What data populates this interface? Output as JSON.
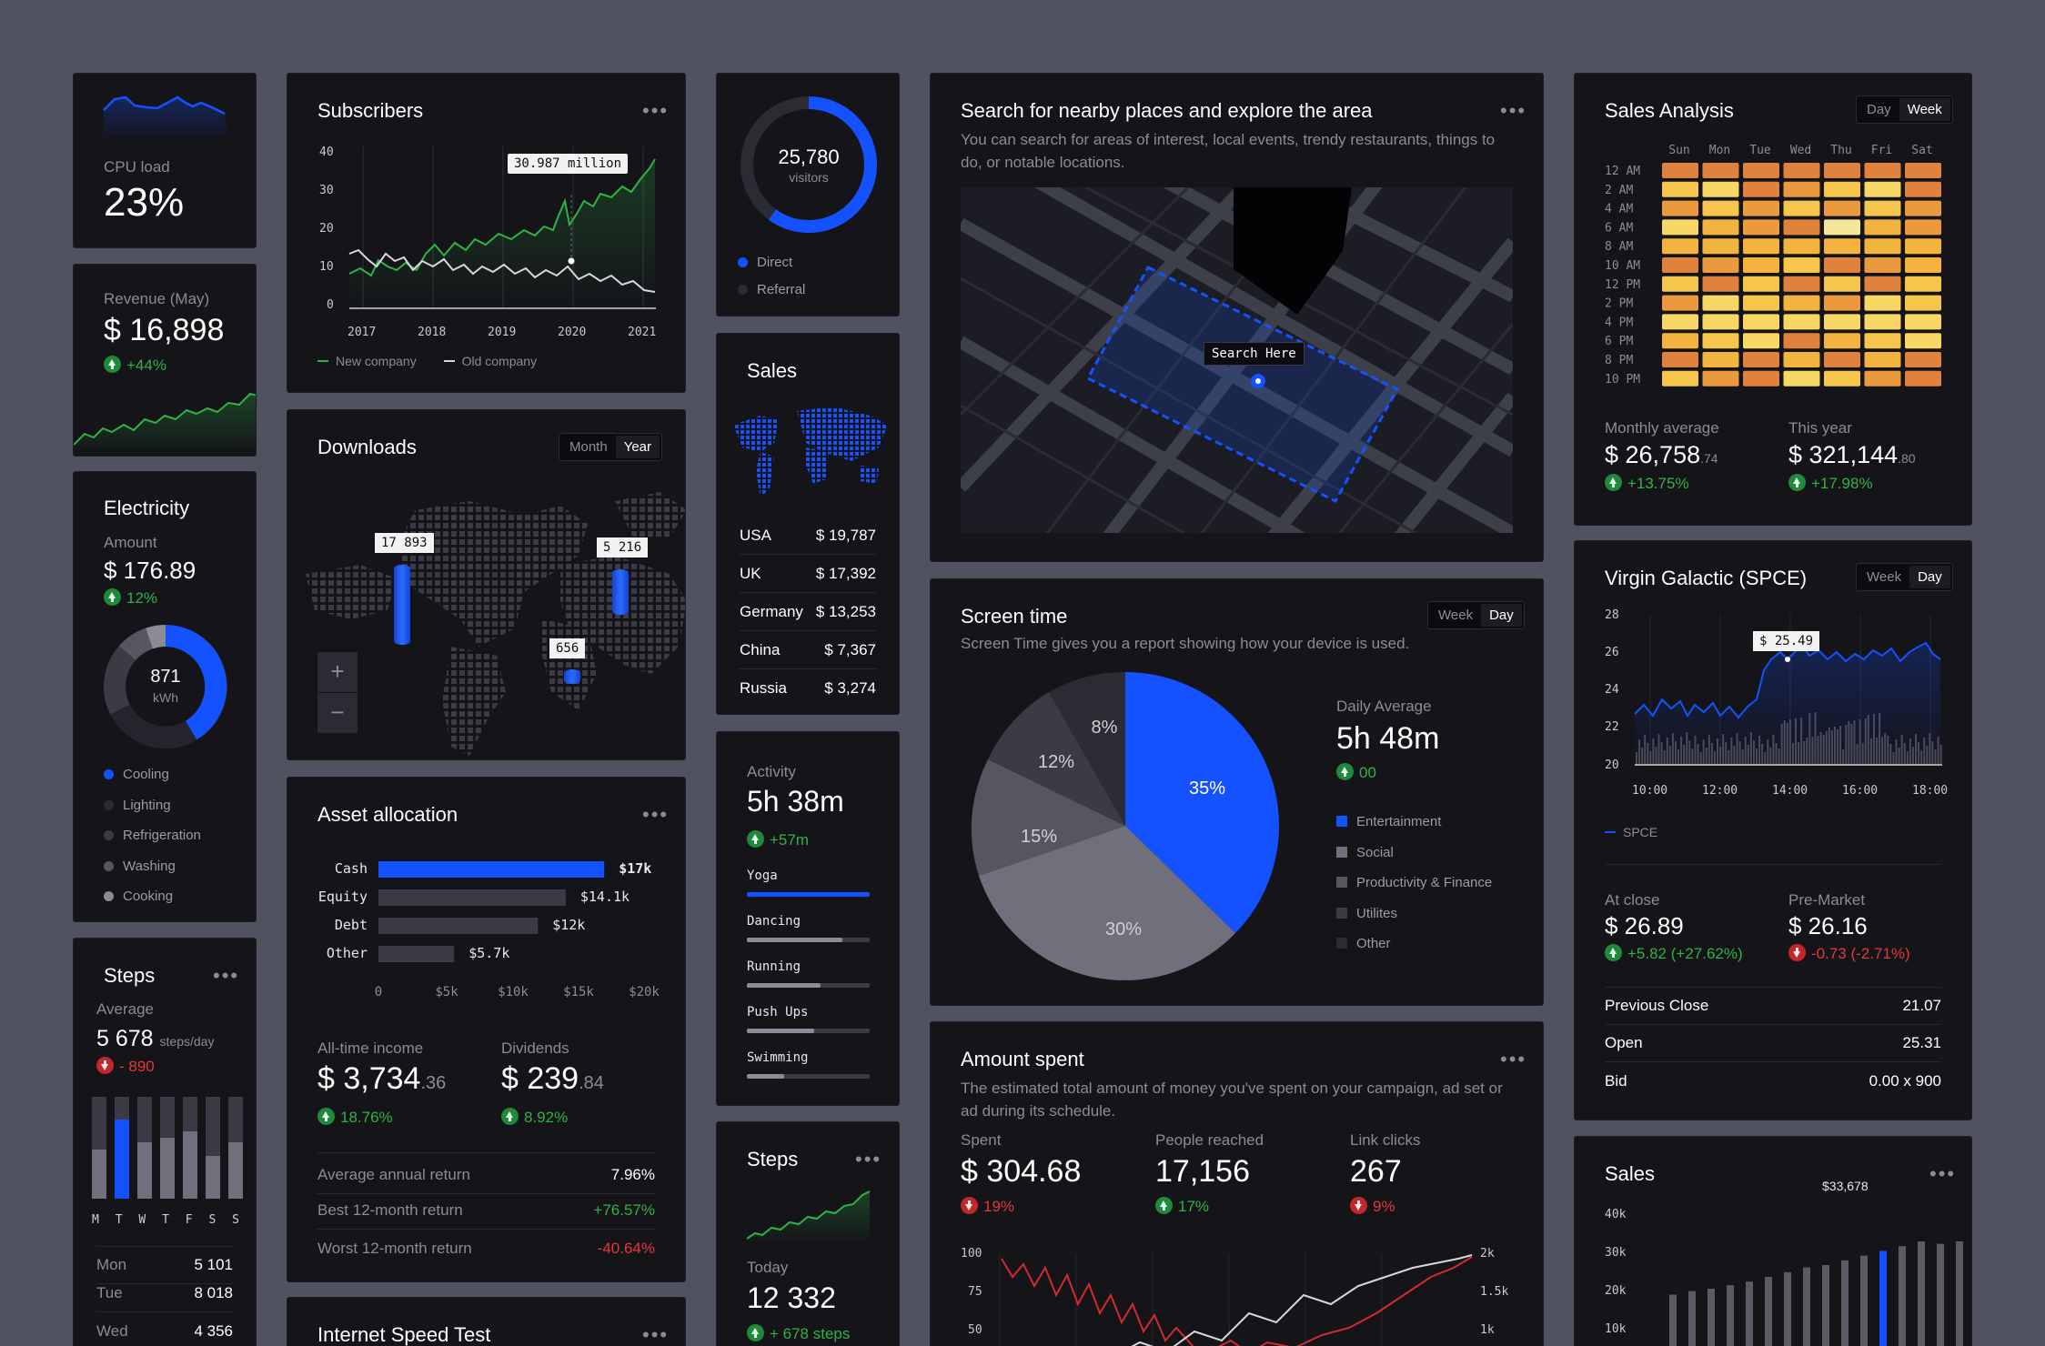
{
  "cpu": {
    "label": "CPU load",
    "value": "23%"
  },
  "revenue": {
    "label": "Revenue (May)",
    "value": "$ 16,898",
    "change": "+44%"
  },
  "electricity": {
    "title": "Electricity",
    "amount_label": "Amount",
    "amount": "$ 176.89",
    "change": "12%",
    "center_value": "871",
    "center_unit": "kWh",
    "legend": [
      "Cooling",
      "Lighting",
      "Refrigeration",
      "Washing",
      "Cooking"
    ]
  },
  "steps_left": {
    "title": "Steps",
    "avg_label": "Average",
    "avg_value": "5 678",
    "avg_unit": "steps/day",
    "change": "- 890",
    "days": [
      "M",
      "T",
      "W",
      "T",
      "F",
      "S",
      "S"
    ],
    "levels": [
      0.48,
      0.78,
      0.55,
      0.6,
      0.66,
      0.42,
      0.55
    ],
    "rows": [
      {
        "day": "Mon",
        "value": "5 101"
      },
      {
        "day": "Tue",
        "value": "8 018"
      },
      {
        "day": "Wed",
        "value": "4 356"
      }
    ]
  },
  "subscribers": {
    "title": "Subscribers",
    "tooltip": "30.987 million",
    "y_ticks": [
      "40",
      "30",
      "20",
      "10",
      "0"
    ],
    "x_ticks": [
      "2017",
      "2018",
      "2019",
      "2020",
      "2021"
    ],
    "legend": [
      "New company",
      "Old company"
    ]
  },
  "downloads": {
    "title": "Downloads",
    "toggle": [
      "Month",
      "Year"
    ],
    "active": "Year",
    "pins": [
      "17 893",
      "5 216",
      "656"
    ],
    "zoom_in": "+",
    "zoom_out": "−"
  },
  "asset": {
    "title": "Asset allocation",
    "bars": [
      {
        "label": "Cash",
        "value": "$17k",
        "amount": 17
      },
      {
        "label": "Equity",
        "value": "$14.1k",
        "amount": 14.1
      },
      {
        "label": "Debt",
        "value": "$12k",
        "amount": 12
      },
      {
        "label": "Other",
        "value": "$5.7k",
        "amount": 5.7
      }
    ],
    "x_ticks": [
      "0",
      "$5k",
      "$10k",
      "$15k",
      "$20k"
    ],
    "income_label": "All-time income",
    "income": "$ 3,734",
    "income_cents": ".36",
    "income_change": "18.76%",
    "div_label": "Dividends",
    "div": "$ 239",
    "div_cents": ".84",
    "div_change": "8.92%",
    "rows": [
      {
        "label": "Average annual return",
        "value": "7.96%"
      },
      {
        "label": "Best 12-month return",
        "value": "+76.57%"
      },
      {
        "label": "Worst 12-month return",
        "value": "-40.64%"
      }
    ]
  },
  "speed": {
    "title": "Internet Speed Test"
  },
  "visitors": {
    "value": "25,780",
    "unit": "visitors",
    "legend": [
      "Direct",
      "Referral"
    ],
    "direct_share": 0.6
  },
  "sales_mid": {
    "title": "Sales",
    "rows": [
      {
        "country": "USA",
        "value": "$ 19,787"
      },
      {
        "country": "UK",
        "value": "$ 17,392"
      },
      {
        "country": "Germany",
        "value": "$ 13,253"
      },
      {
        "country": "China",
        "value": "$ 7,367"
      },
      {
        "country": "Russia",
        "value": "$ 3,274"
      }
    ]
  },
  "activity": {
    "label": "Activity",
    "value": "5h 38m",
    "change": "+57m",
    "items": [
      {
        "name": "Yoga",
        "level": 1.0
      },
      {
        "name": "Dancing",
        "level": 0.78
      },
      {
        "name": "Running",
        "level": 0.6
      },
      {
        "name": "Push Ups",
        "level": 0.55
      },
      {
        "name": "Swimming",
        "level": 0.3
      }
    ]
  },
  "steps_mid": {
    "title": "Steps",
    "today_label": "Today",
    "value": "12 332",
    "change": "+ 678 steps"
  },
  "map": {
    "title": "Search for nearby places and explore the area",
    "desc": "You can search for areas of interest, local events, trendy restaurants, things to do, or notable locations.",
    "pin_label": "Search Here"
  },
  "screen_time": {
    "title": "Screen time",
    "desc": "Screen Time gives you a report showing how your device is used.",
    "toggle": [
      "Week",
      "Day"
    ],
    "active": "Day",
    "avg_label": "Daily Average",
    "avg_value": "5h 48m",
    "change": "00",
    "legend": [
      "Entertainment",
      "Social",
      "Productivity & Finance",
      "Utilites",
      "Other"
    ]
  },
  "amount_spent": {
    "title": "Amount spent",
    "desc": "The estimated total amount of money you've spent on your campaign, ad set or ad during its schedule.",
    "stats": [
      {
        "label": "Spent",
        "value": "$ 304.68",
        "change": "19%",
        "dir": "down"
      },
      {
        "label": "People reached",
        "value": "17,156",
        "change": "17%",
        "dir": "up"
      },
      {
        "label": "Link clicks",
        "value": "267",
        "change": "9%",
        "dir": "down"
      }
    ],
    "y_left": [
      "100",
      "75",
      "50"
    ],
    "y_right": [
      "2k",
      "1.5k",
      "1k"
    ]
  },
  "sales_analysis": {
    "title": "Sales Analysis",
    "toggle": [
      "Day",
      "Week"
    ],
    "active": "Week",
    "days": [
      "Sun",
      "Mon",
      "Tue",
      "Wed",
      "Thu",
      "Fri",
      "Sat"
    ],
    "hours": [
      "12 AM",
      "2 AM",
      "4 AM",
      "6 AM",
      "8 AM",
      "10 AM",
      "12 PM",
      "2 PM",
      "4 PM",
      "6 PM",
      "8 PM",
      "10 PM"
    ],
    "monthly_label": "Monthly average",
    "monthly": "$ 26,758",
    "monthly_cents": ".74",
    "monthly_change": "+13.75%",
    "year_label": "This year",
    "year": "$ 321,144",
    "year_cents": ".80",
    "year_change": "+17.98%"
  },
  "spce": {
    "title": "Virgin Galactic (SPCE)",
    "toggle": [
      "Week",
      "Day"
    ],
    "active": "Day",
    "tooltip": "$ 25.49",
    "y_ticks": [
      "28",
      "26",
      "24",
      "22",
      "20"
    ],
    "x_ticks": [
      "10:00",
      "12:00",
      "14:00",
      "16:00",
      "18:00"
    ],
    "legend": "SPCE",
    "close_label": "At close",
    "close": "$ 26.89",
    "close_change": "+5.82 (+27.62%)",
    "pre_label": "Pre-Market",
    "pre": "$ 26.16",
    "pre_change": "-0.73 (-2.71%)",
    "rows": [
      {
        "label": "Previous Close",
        "value": "21.07"
      },
      {
        "label": "Open",
        "value": "25.31"
      },
      {
        "label": "Bid",
        "value": "0.00 x 900"
      }
    ]
  },
  "sales_right": {
    "title": "Sales",
    "tooltip": "$33,678",
    "y_ticks": [
      "40k",
      "30k",
      "20k",
      "10k"
    ]
  },
  "colors": {
    "accent": "#1552ff",
    "up": "#2fb344",
    "down": "#e5383b",
    "card": "#141419",
    "bg": "#50535f"
  }
}
